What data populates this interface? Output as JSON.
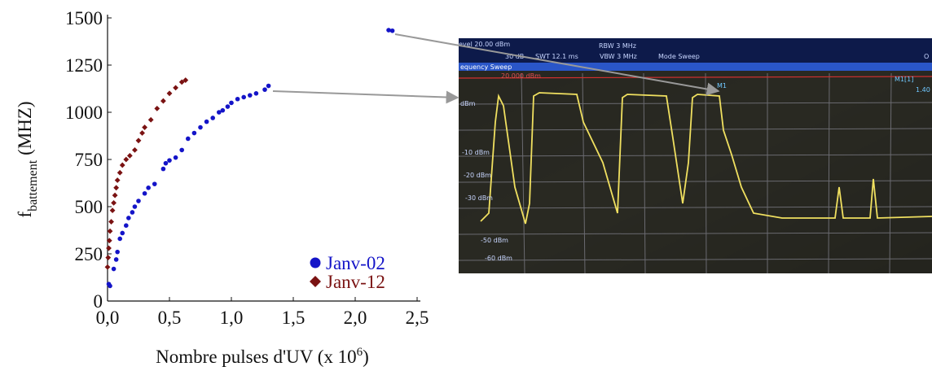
{
  "chart_data": {
    "type": "scatter",
    "x_label": {
      "text": "Nombre pulses d'UV (x 10",
      "sup": "6",
      "end": ")"
    },
    "y_label": {
      "main": "f",
      "sub": "battement",
      "unit": "(MHZ)"
    },
    "xlim": [
      0,
      2.5
    ],
    "ylim": [
      0,
      1500
    ],
    "xticks": [
      {
        "value": 0,
        "label": "0,0"
      },
      {
        "value": 0.5,
        "label": "0,5"
      },
      {
        "value": 1,
        "label": "1,0"
      },
      {
        "value": 1.5,
        "label": "1,5"
      },
      {
        "value": 2,
        "label": "2,0"
      },
      {
        "value": 2.5,
        "label": "2,5"
      }
    ],
    "yticks": [
      0,
      250,
      500,
      750,
      1000,
      1250,
      1500
    ],
    "legend": "lower right",
    "series": [
      {
        "name": "Janv-02",
        "color": "#1414c8",
        "marker": "circle",
        "x": [
          0.01,
          0.02,
          0.05,
          0.07,
          0.08,
          0.1,
          0.12,
          0.15,
          0.17,
          0.2,
          0.22,
          0.25,
          0.3,
          0.33,
          0.38,
          0.45,
          0.47,
          0.5,
          0.55,
          0.6,
          0.65,
          0.7,
          0.75,
          0.8,
          0.85,
          0.9,
          0.93,
          0.97,
          1.0,
          1.05,
          1.1,
          1.15,
          1.2,
          1.27,
          1.3,
          2.27,
          2.3
        ],
        "values": [
          90,
          80,
          170,
          220,
          260,
          330,
          360,
          400,
          440,
          470,
          500,
          530,
          570,
          600,
          620,
          700,
          730,
          745,
          760,
          800,
          860,
          890,
          920,
          950,
          970,
          1000,
          1010,
          1030,
          1050,
          1070,
          1080,
          1090,
          1100,
          1120,
          1140,
          1435,
          1432
        ]
      },
      {
        "name": "Janv-12",
        "color": "#7a1212",
        "marker": "diamond",
        "x": [
          0,
          0.005,
          0.01,
          0.015,
          0.02,
          0.03,
          0.04,
          0.05,
          0.06,
          0.07,
          0.08,
          0.1,
          0.12,
          0.15,
          0.18,
          0.22,
          0.25,
          0.28,
          0.3,
          0.35,
          0.4,
          0.45,
          0.5,
          0.55,
          0.6,
          0.63
        ],
        "values": [
          180,
          230,
          280,
          320,
          370,
          420,
          480,
          520,
          560,
          600,
          640,
          680,
          720,
          750,
          770,
          800,
          850,
          890,
          920,
          960,
          1020,
          1060,
          1100,
          1130,
          1160,
          1170
        ]
      }
    ]
  },
  "photo": {
    "level": "evel 20.00 dBm",
    "rbw": "RBW 3 MHz",
    "att": "30 dB",
    "swt": "SWT 12.1 ms",
    "vbw": "VBW 3 MHz",
    "mode": "Mode Sweep",
    "tab": "equency Sweep",
    "ref": "20.000 dBm",
    "marker": "M1",
    "marker_info": "M1[1]",
    "marker_val": "1.40",
    "db0": "dBm",
    "db10": "-10 dBm",
    "db20": "-20 dBm",
    "db30": "-30 dBm",
    "db50": "-50 dBm",
    "db60": "-60 dBm",
    "corner": "O"
  }
}
